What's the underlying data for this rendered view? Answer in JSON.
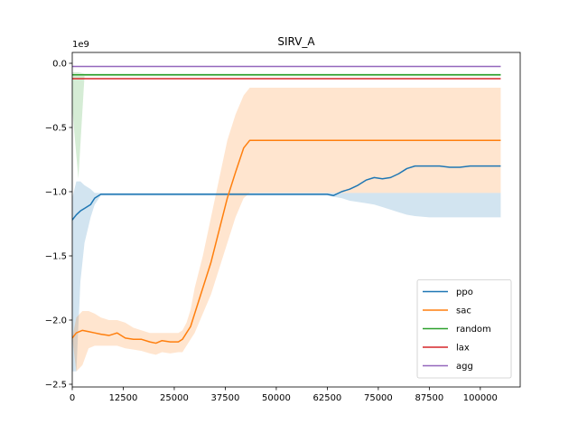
{
  "chart_data": {
    "type": "line",
    "title": "SIRV_A",
    "xlabel": "",
    "ylabel": "",
    "y_offset_label": "1e9",
    "xlim": [
      0,
      109000
    ],
    "ylim": [
      -2.52,
      0.08
    ],
    "x_ticks": [
      0,
      12500,
      25000,
      37500,
      50000,
      62500,
      75000,
      87500,
      100000
    ],
    "y_ticks": [
      0.0,
      -0.5,
      -1.0,
      -1.5,
      -2.0,
      -2.5
    ],
    "y_tick_labels": [
      "0.0",
      "−0.5",
      "−1.0",
      "−1.5",
      "−2.0",
      "−2.5"
    ],
    "legend_position": "lower-right",
    "grid": false,
    "series": [
      {
        "name": "ppo",
        "color": "#1f77b4",
        "x": [
          0,
          1000,
          2000,
          3000,
          4500,
          5500,
          7000,
          12500,
          20000,
          30000,
          40000,
          50000,
          62500,
          64000,
          66000,
          68000,
          70000,
          72000,
          74000,
          76000,
          78000,
          80000,
          82000,
          84000,
          87500,
          90000,
          92500,
          95000,
          97500,
          100000,
          102500,
          105000
        ],
        "y": [
          -1.22,
          -1.18,
          -1.15,
          -1.13,
          -1.1,
          -1.05,
          -1.02,
          -1.02,
          -1.02,
          -1.02,
          -1.02,
          -1.02,
          -1.02,
          -1.03,
          -1.0,
          -0.98,
          -0.95,
          -0.91,
          -0.89,
          -0.9,
          -0.89,
          -0.86,
          -0.82,
          -0.8,
          -0.8,
          -0.8,
          -0.81,
          -0.81,
          -0.8,
          -0.8,
          -0.8,
          -0.8
        ],
        "upper": [
          -1.05,
          -0.92,
          -0.92,
          -0.95,
          -0.98,
          -1.01,
          -1.01,
          -1.01,
          -1.01,
          -1.01,
          -1.01,
          -1.01,
          -1.01,
          -1.01,
          -1.01,
          -1.01,
          -1.01,
          -1.01,
          -1.01,
          -1.01,
          -1.01,
          -1.01,
          -1.01,
          -1.01,
          -1.01,
          -1.01,
          -1.01,
          -1.01,
          -1.01,
          -1.01,
          -1.01,
          -1.01
        ],
        "lower": [
          -2.4,
          -2.4,
          -1.7,
          -1.4,
          -1.2,
          -1.1,
          -1.03,
          -1.03,
          -1.03,
          -1.03,
          -1.03,
          -1.03,
          -1.03,
          -1.04,
          -1.05,
          -1.07,
          -1.08,
          -1.09,
          -1.1,
          -1.12,
          -1.14,
          -1.16,
          -1.18,
          -1.19,
          -1.2,
          -1.2,
          -1.2,
          -1.2,
          -1.2,
          -1.2,
          -1.2,
          -1.2
        ]
      },
      {
        "name": "sac",
        "color": "#ff7f0e",
        "x": [
          0,
          1000,
          2500,
          4000,
          5500,
          7000,
          9000,
          11000,
          13000,
          15000,
          17000,
          19000,
          20500,
          22000,
          24000,
          26000,
          27000,
          28000,
          29000,
          30000,
          32000,
          34000,
          36000,
          38000,
          40000,
          42000,
          43500,
          45000,
          50000,
          55000,
          62500,
          75000,
          87500,
          100000,
          105000
        ],
        "y": [
          -2.14,
          -2.1,
          -2.08,
          -2.09,
          -2.1,
          -2.11,
          -2.12,
          -2.1,
          -2.14,
          -2.15,
          -2.15,
          -2.17,
          -2.18,
          -2.16,
          -2.17,
          -2.17,
          -2.15,
          -2.1,
          -2.05,
          -1.95,
          -1.75,
          -1.55,
          -1.3,
          -1.05,
          -0.85,
          -0.66,
          -0.6,
          -0.6,
          -0.6,
          -0.6,
          -0.6,
          -0.6,
          -0.6,
          -0.6,
          -0.6
        ],
        "upper": [
          -2.14,
          -1.98,
          -1.93,
          -1.93,
          -1.95,
          -1.98,
          -2.0,
          -2.0,
          -2.02,
          -2.06,
          -2.08,
          -2.1,
          -2.1,
          -2.1,
          -2.1,
          -2.1,
          -2.08,
          -2.02,
          -1.92,
          -1.75,
          -1.5,
          -1.2,
          -0.9,
          -0.6,
          -0.4,
          -0.25,
          -0.19,
          -0.19,
          -0.19,
          -0.19,
          -0.19,
          -0.19,
          -0.19,
          -0.19,
          -0.19
        ],
        "lower": [
          -2.14,
          -2.4,
          -2.35,
          -2.22,
          -2.2,
          -2.2,
          -2.2,
          -2.2,
          -2.22,
          -2.23,
          -2.24,
          -2.26,
          -2.27,
          -2.25,
          -2.26,
          -2.25,
          -2.25,
          -2.2,
          -2.15,
          -2.1,
          -1.95,
          -1.8,
          -1.6,
          -1.4,
          -1.2,
          -1.05,
          -1.01,
          -1.01,
          -1.01,
          -1.01,
          -1.01,
          -1.01,
          -1.01,
          -1.01,
          -1.01
        ]
      },
      {
        "name": "random",
        "color": "#2ca02c",
        "x": [
          0,
          1500,
          3000,
          12500,
          25000,
          37500,
          50000,
          62500,
          75000,
          87500,
          100000,
          105000
        ],
        "y": [
          -0.09,
          -0.09,
          -0.09,
          -0.09,
          -0.09,
          -0.09,
          -0.09,
          -0.09,
          -0.09,
          -0.09,
          -0.09,
          -0.09
        ],
        "upper": [
          -0.07,
          -0.07,
          -0.08,
          -0.08,
          -0.08,
          -0.08,
          -0.08,
          -0.08,
          -0.08,
          -0.08,
          -0.08,
          -0.08
        ],
        "lower": [
          -0.35,
          -0.9,
          -0.1,
          -0.1,
          -0.1,
          -0.1,
          -0.1,
          -0.1,
          -0.1,
          -0.1,
          -0.1,
          -0.1
        ]
      },
      {
        "name": "lax",
        "color": "#d62728",
        "x": [
          0,
          105000
        ],
        "y": [
          -0.12,
          -0.12
        ]
      },
      {
        "name": "agg",
        "color": "#9467bd",
        "x": [
          0,
          105000
        ],
        "y": [
          -0.025,
          -0.025
        ]
      }
    ]
  }
}
